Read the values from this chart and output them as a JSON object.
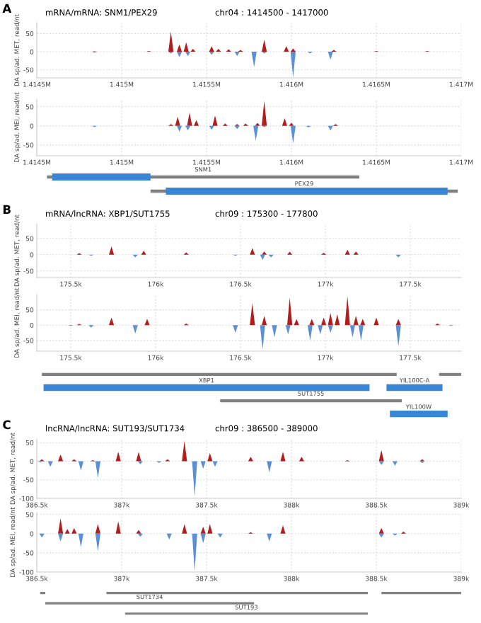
{
  "chart_data": [
    {
      "type": "area",
      "title": "mRNA/mRNA: SNM1/PEX29",
      "subtitle": "chr04 : 1414500 - 1417000",
      "annotations": [
        "A"
      ],
      "ylabel": "DA sp/ad. MET, read/nt",
      "xlim": [
        1414500,
        1417000
      ],
      "xticks": [
        {
          "value": 1414500,
          "label": "1.4145M"
        },
        {
          "value": 1415000,
          "label": "1.415M"
        },
        {
          "value": 1415500,
          "label": "1.4155M"
        },
        {
          "value": 1416000,
          "label": "1.416M"
        },
        {
          "value": 1416500,
          "label": "1.4165M"
        },
        {
          "value": 1417000,
          "label": "1.417M"
        }
      ],
      "ylim": [
        -72,
        80
      ],
      "yticks": [
        -50,
        0,
        50
      ],
      "grid": true,
      "series": [
        {
          "color": "#b21e1e",
          "x": [
            1414500,
            1414825,
            1414840,
            1414855,
            1415145,
            1415160,
            1415175,
            1415275,
            1415290,
            1415305,
            1415325,
            1415340,
            1415355,
            1415365,
            1415380,
            1415395,
            1415405,
            1415420,
            1415435,
            1415515,
            1415530,
            1415545,
            1415555,
            1415570,
            1415585,
            1415615,
            1415630,
            1415645,
            1415685,
            1415700,
            1415715,
            1415825,
            1415840,
            1415855,
            1415955,
            1415970,
            1415985,
            1415995,
            1416010,
            1416025,
            1416235,
            1416250,
            1416265,
            1416485,
            1416500,
            1416515,
            1416785,
            1416800,
            1416815,
            1417000
          ],
          "values": [
            0,
            0,
            1,
            0,
            0,
            2,
            0,
            0,
            55,
            0,
            0,
            20,
            0,
            0,
            26,
            0,
            0,
            8,
            0,
            0,
            15,
            0,
            0,
            8,
            0,
            0,
            7,
            0,
            0,
            5,
            0,
            0,
            33,
            0,
            0,
            15,
            0,
            0,
            9,
            0,
            0,
            5,
            0,
            0,
            2,
            0,
            0,
            2,
            0,
            0
          ]
        },
        {
          "color": "#5b8fd8",
          "x": [
            1414500,
            1414825,
            1414840,
            1414855,
            1415275,
            1415290,
            1415305,
            1415325,
            1415340,
            1415355,
            1415375,
            1415390,
            1415405,
            1415515,
            1415530,
            1415545,
            1415665,
            1415680,
            1415695,
            1415765,
            1415780,
            1415795,
            1415825,
            1415840,
            1415855,
            1415995,
            1416010,
            1416025,
            1416095,
            1416110,
            1416125,
            1416215,
            1416230,
            1416245,
            1417000
          ],
          "values": [
            0,
            0,
            -3,
            0,
            0,
            -5,
            0,
            0,
            -15,
            0,
            0,
            -12,
            0,
            0,
            -8,
            0,
            0,
            -12,
            0,
            0,
            -43,
            0,
            0,
            -5,
            0,
            0,
            -70,
            0,
            0,
            -5,
            0,
            0,
            -22,
            0,
            0
          ]
        }
      ]
    },
    {
      "type": "area",
      "ylabel": "DA sp/ad. MEI, read/nt",
      "xlim": [
        1414500,
        1417000
      ],
      "xticks": [
        {
          "value": 1414500,
          "label": "1.4145M"
        },
        {
          "value": 1415000,
          "label": "1.415M"
        },
        {
          "value": 1415500,
          "label": "1.4155M"
        },
        {
          "value": 1416000,
          "label": "1.416M"
        },
        {
          "value": 1416500,
          "label": "1.4165M"
        },
        {
          "value": 1417000,
          "label": "1.417M"
        }
      ],
      "ylim": [
        -78,
        70
      ],
      "yticks": [
        -50,
        0,
        50
      ],
      "grid": true,
      "series": [
        {
          "color": "#b21e1e",
          "x": [
            1414500,
            1415275,
            1415290,
            1415305,
            1415315,
            1415330,
            1415345,
            1415385,
            1415400,
            1415415,
            1415425,
            1415440,
            1415455,
            1415535,
            1415550,
            1415565,
            1415595,
            1415610,
            1415625,
            1415665,
            1415680,
            1415695,
            1415715,
            1415730,
            1415745,
            1415785,
            1415800,
            1415815,
            1415825,
            1415840,
            1415855,
            1415945,
            1415960,
            1415975,
            1415985,
            1416000,
            1416015,
            1416245,
            1416260,
            1416275,
            1417000
          ],
          "values": [
            0,
            0,
            5,
            0,
            0,
            24,
            0,
            0,
            35,
            0,
            0,
            15,
            0,
            0,
            27,
            0,
            0,
            6,
            0,
            0,
            5,
            0,
            0,
            6,
            0,
            0,
            8,
            0,
            0,
            66,
            0,
            0,
            20,
            0,
            0,
            8,
            0,
            0,
            5,
            0,
            0
          ]
        },
        {
          "color": "#5b8fd8",
          "x": [
            1414500,
            1414825,
            1414840,
            1414855,
            1415325,
            1415340,
            1415355,
            1415375,
            1415390,
            1415405,
            1415515,
            1415530,
            1415545,
            1415665,
            1415680,
            1415695,
            1415775,
            1415790,
            1415805,
            1415825,
            1415840,
            1415855,
            1415995,
            1416010,
            1416025,
            1416085,
            1416100,
            1416115,
            1416215,
            1416230,
            1416245,
            1417000
          ],
          "values": [
            0,
            0,
            -3,
            0,
            0,
            -15,
            0,
            0,
            -12,
            0,
            0,
            -10,
            0,
            0,
            -8,
            0,
            0,
            -38,
            0,
            0,
            -3,
            0,
            0,
            -45,
            0,
            0,
            -4,
            0,
            0,
            -12,
            0,
            0
          ]
        }
      ]
    },
    {
      "type": "other",
      "annotations": [
        "SNM1",
        "PEX29"
      ]
    },
    {
      "type": "area",
      "title": "mRNA/lncRNA: XBP1/SUT1755",
      "subtitle": "chr09 : 175300 - 177800",
      "annotations": [
        "B"
      ],
      "ylabel": "DA sp/ad. MET, read/nt",
      "xlim": [
        175300,
        177800
      ],
      "xticks": [
        {
          "value": 175500,
          "label": "175.5k"
        },
        {
          "value": 176000,
          "label": "176k"
        },
        {
          "value": 176500,
          "label": "176.5k"
        },
        {
          "value": 177000,
          "label": "177k"
        },
        {
          "value": 177500,
          "label": "177.5k"
        }
      ],
      "ylim": [
        -70,
        95
      ],
      "yticks": [
        -50,
        0,
        50
      ],
      "grid": true,
      "series": [
        {
          "color": "#b21e1e",
          "x": [
            175300,
            175535,
            175550,
            175565,
            175725,
            175740,
            175755,
            175915,
            175930,
            175945,
            176165,
            176180,
            176195,
            176555,
            176570,
            176585,
            176625,
            176640,
            176655,
            176775,
            176790,
            176805,
            176975,
            176990,
            177005,
            177115,
            177130,
            177145,
            177165,
            177180,
            177195,
            177800
          ],
          "values": [
            0,
            0,
            5,
            0,
            0,
            25,
            0,
            0,
            12,
            0,
            0,
            7,
            0,
            0,
            20,
            0,
            0,
            10,
            0,
            0,
            9,
            0,
            0,
            6,
            0,
            0,
            15,
            0,
            0,
            10,
            0,
            0
          ]
        },
        {
          "color": "#5b8fd8",
          "x": [
            175300,
            175605,
            175620,
            175635,
            175865,
            175880,
            175895,
            176455,
            176470,
            176485,
            176615,
            176630,
            176645,
            176665,
            176680,
            176695,
            177415,
            177430,
            177445,
            177800
          ],
          "values": [
            0,
            0,
            -3,
            0,
            0,
            -8,
            0,
            0,
            -3,
            0,
            0,
            -16,
            0,
            0,
            -8,
            0,
            0,
            -8,
            0,
            0
          ]
        }
      ]
    },
    {
      "type": "area",
      "ylabel": "DA sp/ad. MEI, read/nt",
      "xlim": [
        175300,
        177800
      ],
      "xticks": [
        {
          "value": 175500,
          "label": "175.5k"
        },
        {
          "value": 176000,
          "label": "176k"
        },
        {
          "value": 176500,
          "label": "176.5k"
        },
        {
          "value": 177000,
          "label": "177k"
        },
        {
          "value": 177500,
          "label": "177.5k"
        }
      ],
      "ylim": [
        -85,
        100
      ],
      "yticks": [
        -50,
        0,
        50
      ],
      "grid": true,
      "series": [
        {
          "color": "#b21e1e",
          "x": [
            175300,
            175535,
            175550,
            175565,
            175725,
            175740,
            175755,
            175935,
            175950,
            175965,
            176165,
            176180,
            176195,
            176555,
            176570,
            176585,
            176625,
            176640,
            176655,
            176775,
            176790,
            176805,
            176815,
            176830,
            176845,
            176905,
            176920,
            176935,
            176975,
            176990,
            177005,
            177015,
            177030,
            177045,
            177055,
            177070,
            177085,
            177115,
            177130,
            177145,
            177165,
            177180,
            177195,
            177205,
            177220,
            177235,
            177285,
            177300,
            177315,
            177415,
            177430,
            177445,
            177645,
            177660,
            177675,
            177800
          ],
          "values": [
            0,
            0,
            4,
            0,
            0,
            25,
            0,
            0,
            20,
            0,
            0,
            5,
            0,
            0,
            72,
            0,
            0,
            30,
            0,
            0,
            90,
            0,
            0,
            20,
            0,
            0,
            20,
            0,
            0,
            25,
            0,
            0,
            40,
            0,
            0,
            35,
            0,
            0,
            95,
            0,
            0,
            30,
            0,
            0,
            20,
            0,
            0,
            25,
            0,
            0,
            20,
            0,
            0,
            5,
            0,
            0
          ]
        },
        {
          "color": "#5b8fd8",
          "x": [
            175300,
            175485,
            175500,
            175515,
            175605,
            175620,
            175635,
            175865,
            175880,
            175895,
            176455,
            176470,
            176485,
            176615,
            176630,
            176645,
            176685,
            176700,
            176715,
            176765,
            176780,
            176795,
            176895,
            176910,
            176925,
            176955,
            176970,
            176985,
            177015,
            177030,
            177045,
            177145,
            177160,
            177175,
            177195,
            177210,
            177225,
            177415,
            177430,
            177445,
            177725,
            177740,
            177755,
            177800
          ],
          "values": [
            0,
            0,
            -3,
            0,
            0,
            -8,
            0,
            0,
            -28,
            0,
            0,
            -25,
            0,
            0,
            -80,
            0,
            0,
            -40,
            0,
            0,
            -30,
            0,
            0,
            -50,
            0,
            0,
            -30,
            0,
            0,
            -25,
            0,
            0,
            -40,
            0,
            0,
            -50,
            0,
            0,
            -70,
            0,
            0,
            -3,
            0,
            0
          ]
        }
      ]
    },
    {
      "type": "other",
      "annotations": [
        "XBP1",
        "YIL100C-A",
        "SUT1755",
        "YIL100W"
      ]
    },
    {
      "type": "area",
      "title": "lncRNA/lncRNA: SUT193/SUT1734",
      "subtitle": "chr09 : 386500 - 389000",
      "annotations": [
        "C"
      ],
      "ylabel": "DA sp/ad. MET, read/nt",
      "xlim": [
        386500,
        389000
      ],
      "xticks": [
        {
          "value": 386500,
          "label": "386.5k"
        },
        {
          "value": 387000,
          "label": "387k"
        },
        {
          "value": 387500,
          "label": "387.5k"
        },
        {
          "value": 388000,
          "label": "388k"
        },
        {
          "value": 388500,
          "label": "388.5k"
        },
        {
          "value": 389000,
          "label": "389k"
        }
      ],
      "ylim": [
        -100,
        60
      ],
      "yticks": [
        -100,
        -50,
        0,
        50
      ],
      "grid": true,
      "series": [
        {
          "color": "#b21e1e",
          "x": [
            386500,
            386515,
            386530,
            386545,
            386625,
            386640,
            386655,
            386705,
            386720,
            386735,
            386815,
            386830,
            386845,
            386965,
            386980,
            386995,
            387085,
            387100,
            387115,
            387255,
            387270,
            387285,
            387355,
            387370,
            387385,
            387505,
            387520,
            387535,
            387745,
            387760,
            387775,
            387935,
            387950,
            387965,
            388045,
            388060,
            388075,
            388315,
            388330,
            388345,
            388515,
            388530,
            388545,
            388755,
            388770,
            388785,
            389000
          ],
          "values": [
            0,
            0,
            5,
            0,
            0,
            18,
            0,
            0,
            5,
            0,
            0,
            3,
            0,
            0,
            25,
            0,
            0,
            25,
            0,
            0,
            5,
            0,
            0,
            55,
            0,
            0,
            22,
            0,
            0,
            12,
            0,
            0,
            25,
            0,
            0,
            12,
            0,
            0,
            3,
            0,
            0,
            30,
            0,
            0,
            5,
            0,
            0
          ]
        },
        {
          "color": "#5b8fd8",
          "x": [
            386500,
            386505,
            386520,
            386535,
            386565,
            386580,
            386595,
            386745,
            386760,
            386775,
            386845,
            386860,
            386875,
            387095,
            387110,
            387125,
            387205,
            387220,
            387235,
            387415,
            387430,
            387445,
            387465,
            387480,
            387495,
            387535,
            387550,
            387565,
            387855,
            387870,
            387885,
            388515,
            388530,
            388545,
            388595,
            388610,
            388625,
            388755,
            388770,
            388785,
            389000
          ],
          "values": [
            0,
            0,
            -3,
            0,
            0,
            -15,
            0,
            0,
            -25,
            0,
            0,
            -45,
            0,
            0,
            -8,
            0,
            0,
            -5,
            0,
            0,
            -95,
            0,
            0,
            -20,
            0,
            0,
            -15,
            0,
            0,
            -30,
            0,
            0,
            -10,
            0,
            0,
            -12,
            0,
            0,
            -5,
            0,
            0
          ]
        }
      ]
    },
    {
      "type": "area",
      "ylabel": "DA sp/ad. MEI, read/nt",
      "xlim": [
        386500,
        389000
      ],
      "xticks": [
        {
          "value": 386500,
          "label": "386.5k"
        },
        {
          "value": 387000,
          "label": "387k"
        },
        {
          "value": 387500,
          "label": "387.5k"
        },
        {
          "value": 388000,
          "label": "388k"
        },
        {
          "value": 388500,
          "label": "388.5k"
        },
        {
          "value": 389000,
          "label": "389k"
        }
      ],
      "ylim": [
        -100,
        55
      ],
      "yticks": [
        -100,
        -50,
        0,
        50
      ],
      "grid": true,
      "series": [
        {
          "color": "#b21e1e",
          "x": [
            386500,
            386625,
            386640,
            386655,
            386665,
            386680,
            386695,
            386705,
            386720,
            386735,
            386845,
            386860,
            386875,
            386965,
            386980,
            386995,
            387085,
            387100,
            387115,
            387355,
            387370,
            387385,
            387465,
            387480,
            387495,
            387505,
            387520,
            387535,
            387745,
            387760,
            387775,
            387935,
            387950,
            387965,
            388515,
            388530,
            388545,
            388645,
            388660,
            388675,
            389000
          ],
          "values": [
            0,
            0,
            40,
            0,
            0,
            12,
            0,
            0,
            15,
            0,
            0,
            25,
            0,
            0,
            32,
            0,
            0,
            10,
            0,
            0,
            25,
            0,
            0,
            18,
            0,
            0,
            25,
            0,
            0,
            4,
            0,
            0,
            22,
            0,
            0,
            15,
            0,
            0,
            5,
            0,
            0
          ]
        },
        {
          "color": "#5b8fd8",
          "x": [
            386500,
            386515,
            386530,
            386545,
            386625,
            386640,
            386655,
            386745,
            386760,
            386775,
            386845,
            386860,
            386875,
            387095,
            387110,
            387125,
            387265,
            387280,
            387295,
            387415,
            387430,
            387445,
            387465,
            387480,
            387495,
            387565,
            387580,
            387595,
            387855,
            387870,
            387885,
            388515,
            388530,
            388545,
            388595,
            388610,
            388625,
            389000
          ],
          "values": [
            0,
            0,
            -10,
            0,
            0,
            -20,
            0,
            0,
            -35,
            0,
            0,
            -45,
            0,
            0,
            -8,
            0,
            0,
            -15,
            0,
            0,
            -98,
            0,
            0,
            -25,
            0,
            0,
            -10,
            0,
            0,
            -20,
            0,
            0,
            -10,
            0,
            0,
            -5,
            0,
            0
          ]
        }
      ]
    },
    {
      "type": "other",
      "annotations": [
        "SUT1734",
        "SUT193"
      ]
    }
  ]
}
